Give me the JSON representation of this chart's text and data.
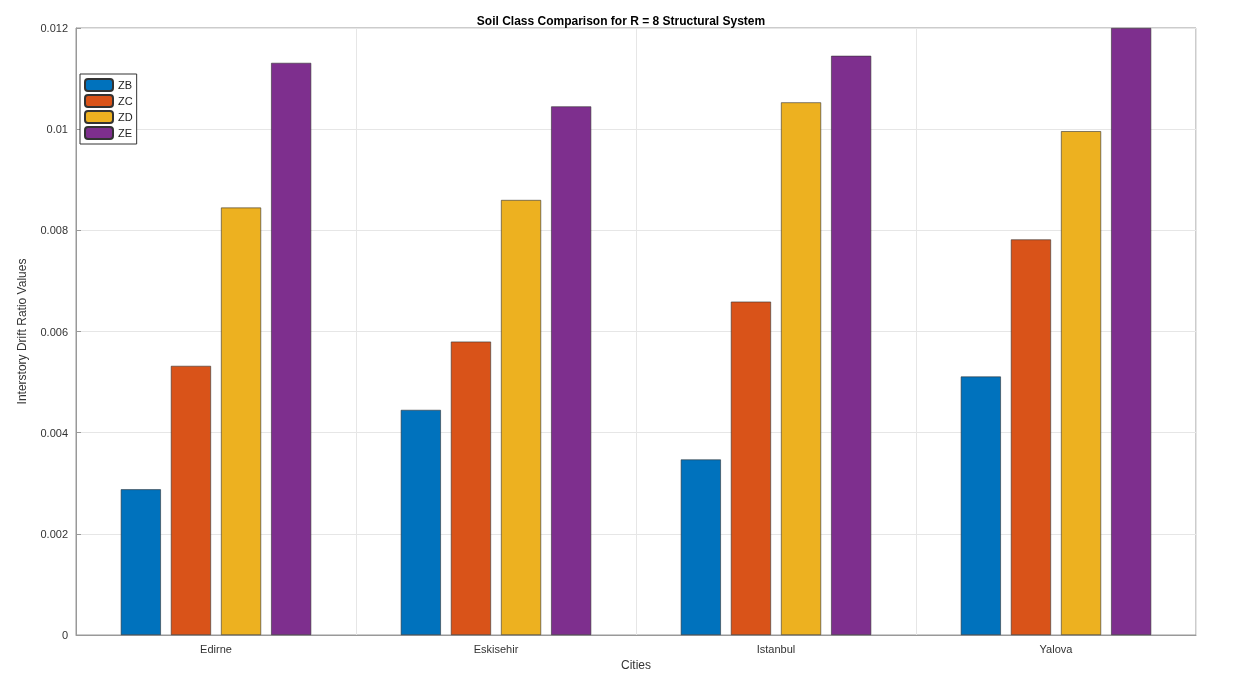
{
  "chart_data": {
    "type": "bar",
    "title": "Soil Class Comparison for R = 8 Structural System",
    "xlabel": "Cities",
    "ylabel": "Interstory Drift Ratio Values",
    "categories": [
      "Edirne",
      "Eskisehir",
      "Istanbul",
      "Yalova"
    ],
    "series": [
      {
        "name": "ZB",
        "color": "#0072bd",
        "values": [
          0.00288,
          0.00445,
          0.00347,
          0.00511
        ]
      },
      {
        "name": "ZC",
        "color": "#d95319",
        "values": [
          0.00532,
          0.0058,
          0.00659,
          0.00782
        ]
      },
      {
        "name": "ZD",
        "color": "#edb120",
        "values": [
          0.00845,
          0.0086,
          0.01053,
          0.00996
        ]
      },
      {
        "name": "ZE",
        "color": "#7e2f8e",
        "values": [
          0.01131,
          0.01045,
          0.01145,
          0.012
        ]
      }
    ],
    "ylim": [
      0,
      0.012
    ],
    "yticks": [
      0,
      0.002,
      0.004,
      0.006,
      0.008,
      0.01,
      0.012
    ],
    "grid": true,
    "legend": "top left"
  }
}
